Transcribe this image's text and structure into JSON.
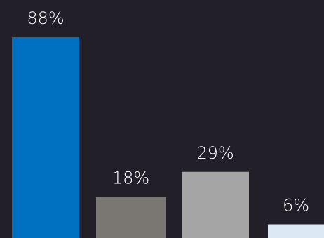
{
  "chart_data": {
    "type": "bar",
    "categories": [
      "",
      "",
      "",
      ""
    ],
    "values": [
      88,
      18,
      29,
      6
    ],
    "labels": [
      "88%",
      "18%",
      "29%",
      "6%"
    ],
    "colors": [
      "#0070c0",
      "#7a7672",
      "#a5a5a5",
      "#dce9f5"
    ],
    "ylim": [
      0,
      100
    ],
    "background": "#231f28",
    "title": "",
    "xlabel": "",
    "ylabel": "",
    "grid": false,
    "legend": "none"
  }
}
